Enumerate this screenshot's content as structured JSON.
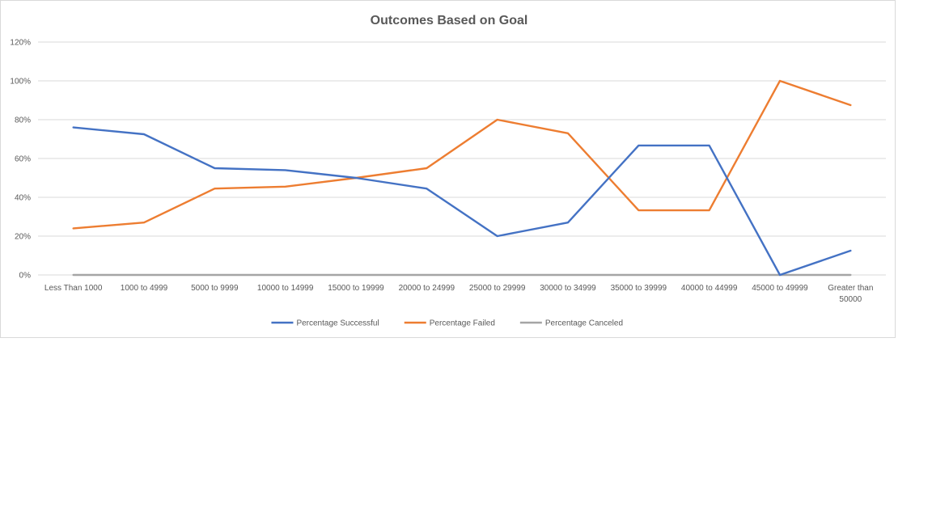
{
  "chart_data": {
    "type": "line",
    "title": "Outcomes Based on Goal",
    "xlabel": "",
    "ylabel": "",
    "ylim": [
      0,
      1.2
    ],
    "yticks": [
      "0%",
      "20%",
      "40%",
      "60%",
      "80%",
      "100%",
      "120%"
    ],
    "grid": true,
    "legend_position": "bottom",
    "categories": [
      "Less Than 1000",
      "1000 to 4999",
      "5000 to 9999",
      "10000 to 14999",
      "15000 to 19999",
      "20000 to 24999",
      "25000 to 29999",
      "30000 to 34999",
      "35000 to 39999",
      "40000 to 44999",
      "45000 to 49999",
      "Greater than 50000"
    ],
    "series": [
      {
        "name": "Percentage Successful",
        "color": "#4472c4",
        "values": [
          0.76,
          0.725,
          0.55,
          0.54,
          0.5,
          0.445,
          0.2,
          0.27,
          0.667,
          0.667,
          0.0,
          0.125
        ]
      },
      {
        "name": "Percentage Failed",
        "color": "#ed7d31",
        "values": [
          0.24,
          0.27,
          0.445,
          0.455,
          0.5,
          0.55,
          0.8,
          0.73,
          0.333,
          0.333,
          1.0,
          0.875
        ]
      },
      {
        "name": "Percentage Canceled",
        "color": "#a5a5a5",
        "values": [
          0,
          0,
          0,
          0,
          0,
          0,
          0,
          0,
          0,
          0,
          0,
          0
        ]
      }
    ]
  }
}
